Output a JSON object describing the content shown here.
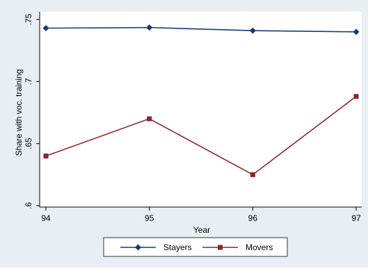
{
  "chart_data": {
    "type": "line",
    "title": "",
    "xlabel": "Year",
    "ylabel": "Share with voc. training",
    "x": [
      "94",
      "95",
      "96",
      "97"
    ],
    "xlim": [
      94,
      97
    ],
    "ylim": [
      0.6,
      0.75
    ],
    "yticks": [
      ".6",
      ".65",
      ".7",
      ".75"
    ],
    "ytick_values": [
      0.6,
      0.65,
      0.7,
      0.75
    ],
    "grid": false,
    "legend_position": "bottom",
    "series": [
      {
        "name": "Stayers",
        "values": [
          0.743,
          0.7435,
          0.741,
          0.74
        ],
        "color": "#1a3a6e",
        "marker": "diamond"
      },
      {
        "name": "Movers",
        "values": [
          0.64,
          0.67,
          0.625,
          0.688
        ],
        "color": "#8b2530",
        "marker": "square"
      }
    ]
  },
  "colors": {
    "outer_background": "#e8eef4",
    "plot_background": "#ffffff"
  }
}
